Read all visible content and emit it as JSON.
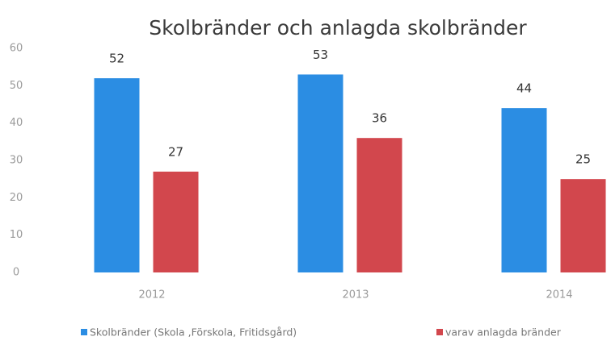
{
  "chart_data": {
    "type": "bar",
    "title": "Skolbränder och anlagda skolbränder",
    "categories": [
      "2012",
      "2013",
      "2014"
    ],
    "series": [
      {
        "name": "Skolbränder (Skola ,Förskola, Fritidsgård)",
        "color": "#2b8de3",
        "values": [
          52,
          53,
          44
        ]
      },
      {
        "name": "varav anlagda bränder",
        "color": "#d2474d",
        "values": [
          27,
          36,
          25
        ]
      }
    ],
    "ylim": [
      0,
      60
    ],
    "yticks": [
      0,
      10,
      20,
      30,
      40,
      50,
      60
    ],
    "grid": false,
    "legend": "bottom"
  }
}
